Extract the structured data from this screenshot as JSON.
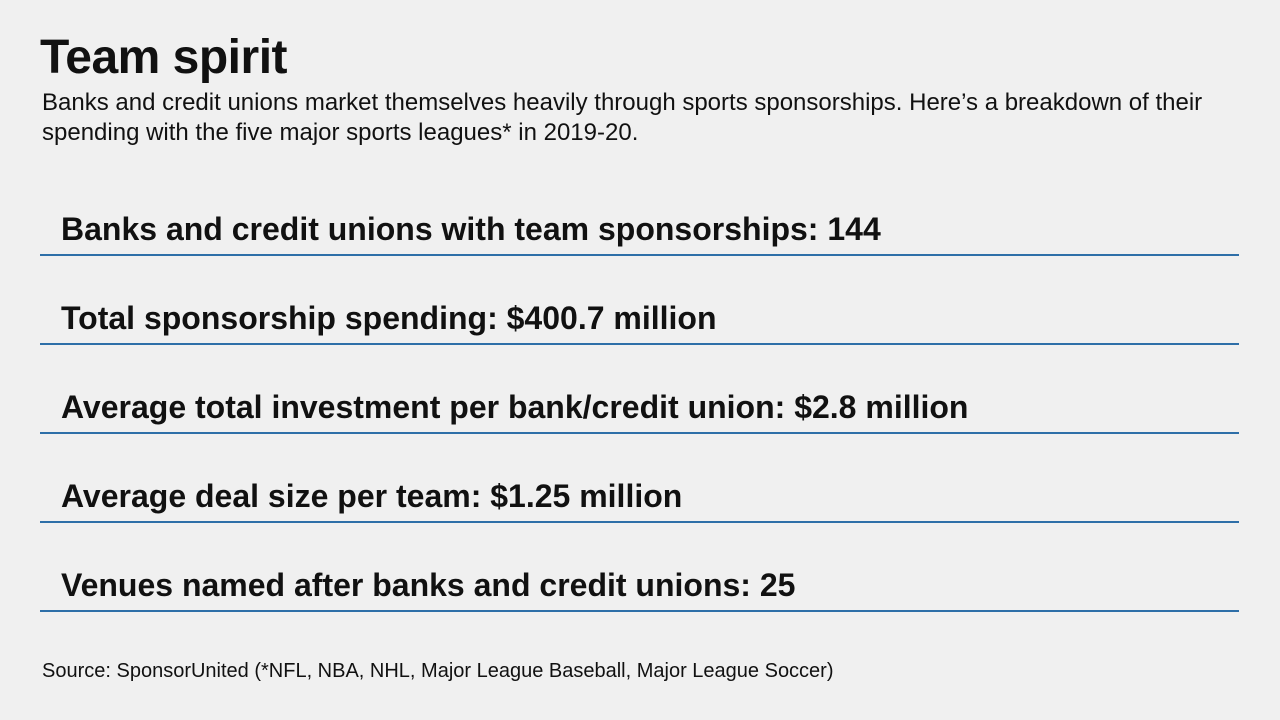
{
  "header": {
    "title": "Team spirit",
    "subtitle": "Banks and credit unions market themselves heavily through sports sponsorships. Here’s a breakdown of their spending with the five major sports leagues* in 2019-20."
  },
  "stats": [
    {
      "label": "Banks and credit unions with team sponsorships: 144"
    },
    {
      "label": "Total sponsorship spending: $400.7 million"
    },
    {
      "label": "Average total investment per bank/credit union: $2.8 million"
    },
    {
      "label": "Average deal size per team: $1.25 million"
    },
    {
      "label": "Venues named after banks and credit unions: 25"
    }
  ],
  "footer": {
    "source": "Source: SponsorUnited (*NFL, NBA, NHL, Major League Baseball, Major League Soccer)"
  },
  "colors": {
    "background": "#f0f0f0",
    "text": "#111111",
    "rule": "#2e6fa8"
  }
}
